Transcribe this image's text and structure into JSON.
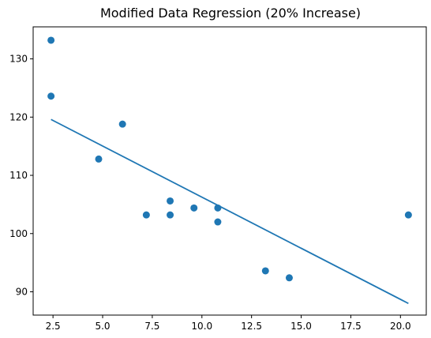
{
  "chart_data": {
    "type": "scatter",
    "title": "Modified Data Regression (20% Increase)",
    "xlabel": "",
    "ylabel": "",
    "xlim": [
      1.5,
      21.3
    ],
    "ylim": [
      86,
      135.5
    ],
    "xticks": [
      2.5,
      5.0,
      7.5,
      10.0,
      12.5,
      15.0,
      17.5,
      20.0
    ],
    "xtick_labels": [
      "2.5",
      "5.0",
      "7.5",
      "10.0",
      "12.5",
      "15.0",
      "17.5",
      "20.0"
    ],
    "yticks": [
      90,
      100,
      110,
      120,
      130
    ],
    "ytick_labels": [
      "90",
      "100",
      "110",
      "120",
      "130"
    ],
    "grid": false,
    "color": "#1f77b4",
    "points": [
      {
        "x": 2.4,
        "y": 133.2
      },
      {
        "x": 2.4,
        "y": 123.6
      },
      {
        "x": 6.0,
        "y": 118.8
      },
      {
        "x": 4.8,
        "y": 112.8
      },
      {
        "x": 8.4,
        "y": 105.6
      },
      {
        "x": 7.2,
        "y": 103.2
      },
      {
        "x": 8.4,
        "y": 103.2
      },
      {
        "x": 9.6,
        "y": 104.4
      },
      {
        "x": 10.8,
        "y": 104.4
      },
      {
        "x": 10.8,
        "y": 102.0
      },
      {
        "x": 13.2,
        "y": 93.6
      },
      {
        "x": 14.4,
        "y": 92.4
      },
      {
        "x": 20.4,
        "y": 103.2
      }
    ],
    "regression_line": {
      "x": [
        2.4,
        20.4
      ],
      "y": [
        119.6,
        88.0
      ]
    }
  }
}
